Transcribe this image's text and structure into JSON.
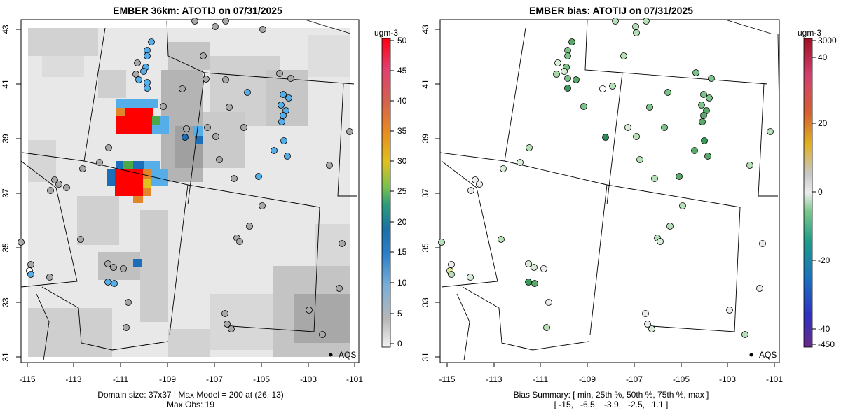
{
  "left_panel": {
    "title": "EMBER 36km: ATOTIJ on 07/31/2025",
    "colorbar": {
      "unit": "ugm-3",
      "tick_labels": [
        "50",
        "45",
        "40",
        "35",
        "30",
        "25",
        "20",
        "15",
        "10",
        "5",
        "0"
      ]
    },
    "footer_line1": "Domain size: 37x37 | Max Model = 200 at (26, 13)",
    "footer_line2": "Max Obs: 19",
    "legend_label": "AQS"
  },
  "right_panel": {
    "title": "EMBER bias: ATOTIJ on 07/31/2025",
    "colorbar": {
      "unit": "ugm-3",
      "tick_labels": [
        "3000",
        "40",
        "20",
        "0",
        "-20",
        "-40",
        "-450"
      ]
    },
    "footer_line1": "Bias Summary: [ min, 25th %, 50th %, 75th %, max ]",
    "footer_line2": "[ -15,   -6.5,   -3.9,   -2.5,   1.1 ]",
    "legend_label": "AQS"
  },
  "x_tick_labels": [
    "-115",
    "-113",
    "-111",
    "-109",
    "-107",
    "-105",
    "-103",
    "-101"
  ],
  "y_tick_labels": [
    "43",
    "41",
    "39",
    "37",
    "35",
    "33",
    "31"
  ],
  "colors": {
    "high": "#ff0000",
    "orange": "#e2842a",
    "green_mid": "#4aa84a",
    "blue_mid": "#1a6fb8",
    "blue_light": "#55aee8",
    "gray_light": "#e8e8e8",
    "gray_mid": "#c8c8c8",
    "gray_dark": "#a8a8a8",
    "bias_green": "#7cc48a",
    "bias_light": "#d8ecd8"
  }
}
